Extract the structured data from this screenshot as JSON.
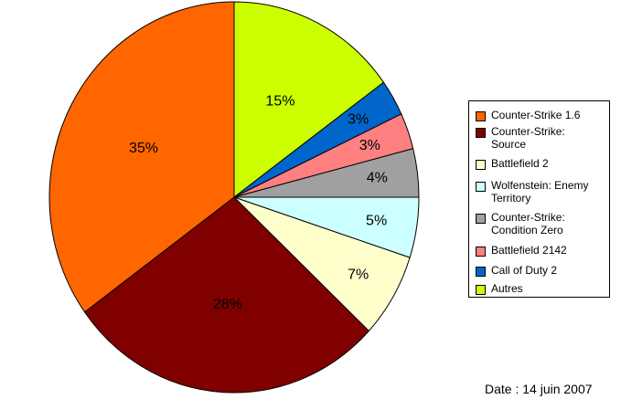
{
  "chart_data": {
    "type": "pie",
    "title": "",
    "slices": [
      {
        "label": "Counter-Strike 1.6",
        "value": 35,
        "display": "35%",
        "color": "#ff6600"
      },
      {
        "label": "Counter-Strike: Source",
        "value": 28,
        "display": "28%",
        "color": "#800000"
      },
      {
        "label": "Battlefield 2",
        "value": 7,
        "display": "7%",
        "color": "#ffffcc"
      },
      {
        "label": "Wolfenstein: Enemy Territory",
        "value": 5,
        "display": "5%",
        "color": "#ccffff"
      },
      {
        "label": "Counter-Strike: Condition Zero",
        "value": 4,
        "display": "4%",
        "color": "#a0a0a0"
      },
      {
        "label": "Battlefield 2142",
        "value": 3,
        "display": "3%",
        "color": "#ff8080"
      },
      {
        "label": "Call of Duty 2",
        "value": 3,
        "display": "3%",
        "color": "#0066cc"
      },
      {
        "label": "Autres",
        "value": 15,
        "display": "15%",
        "color": "#ccff00"
      }
    ],
    "slice_order_clockwise_from_top": [
      "Autres",
      "Call of Duty 2",
      "Battlefield 2142",
      "Counter-Strike: Condition Zero",
      "Wolfenstein: Enemy Territory",
      "Battlefield 2",
      "Counter-Strike: Source",
      "Counter-Strike 1.6"
    ],
    "legend": {
      "placement": "right",
      "entries": [
        {
          "lines": [
            "Counter-Strike 1.6"
          ],
          "color": "#ff6600"
        },
        {
          "lines": [
            "Counter-Strike:",
            "Source"
          ],
          "color": "#800000"
        },
        {
          "lines": [
            "Battlefield 2"
          ],
          "color": "#ffffcc"
        },
        {
          "lines": [
            "Wolfenstein: Enemy",
            "Territory"
          ],
          "color": "#ccffff"
        },
        {
          "lines": [
            "Counter-Strike:",
            "Condition Zero"
          ],
          "color": "#a0a0a0"
        },
        {
          "lines": [
            "Battlefield 2142"
          ],
          "color": "#ff8080"
        },
        {
          "lines": [
            "Call of Duty 2"
          ],
          "color": "#0066cc"
        },
        {
          "lines": [
            "Autres"
          ],
          "color": "#ccff00"
        }
      ]
    }
  },
  "footer": {
    "date_text": "Date : 14 juin 2007"
  }
}
